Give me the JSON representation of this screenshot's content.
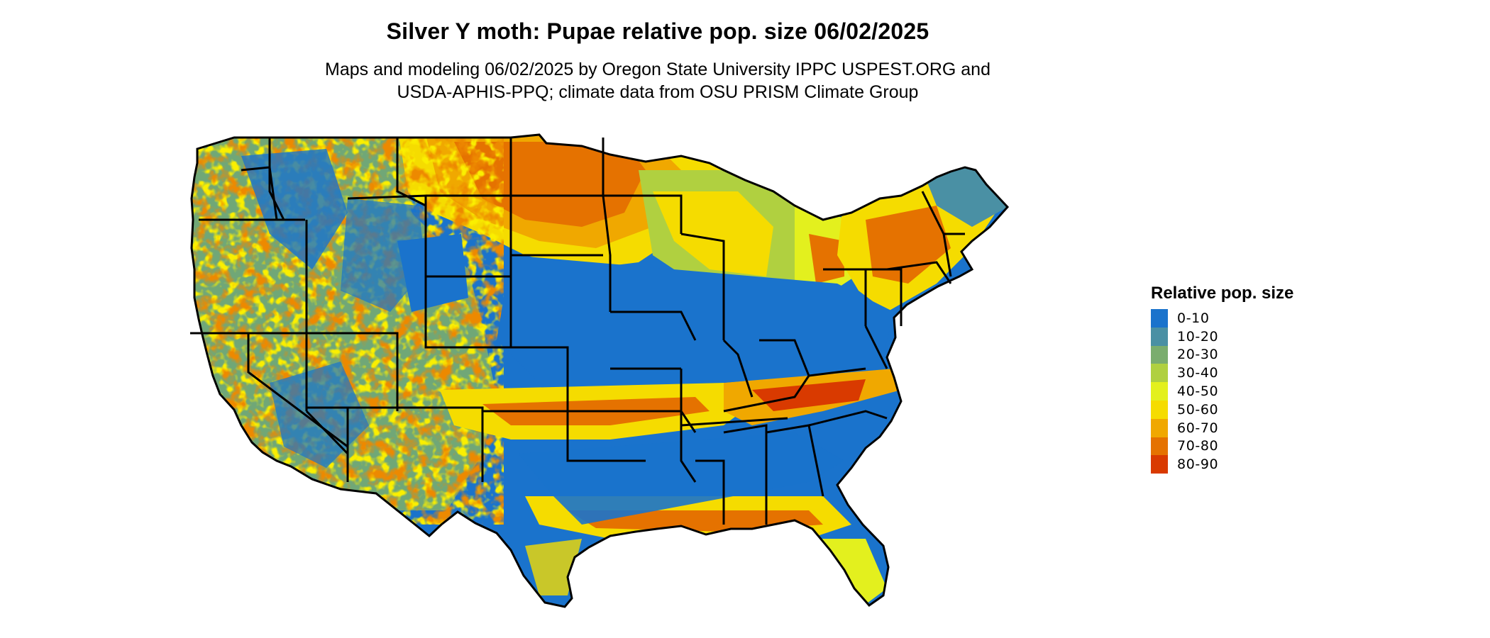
{
  "title": "Silver Y moth: Pupae relative pop. size 06/02/2025",
  "subtitle_line1": "Maps and modeling 06/02/2025 by Oregon State University IPPC USPEST.ORG and",
  "subtitle_line2": "USDA-APHIS-PPQ; climate data from OSU PRISM Climate Group",
  "legend": {
    "title": "Relative pop. size",
    "items": [
      {
        "label": "0-10",
        "color": "#1a73cc"
      },
      {
        "label": "10-20",
        "color": "#4a90a4"
      },
      {
        "label": "20-30",
        "color": "#7aad6e"
      },
      {
        "label": "30-40",
        "color": "#b0d040"
      },
      {
        "label": "40-50",
        "color": "#e3f01e"
      },
      {
        "label": "50-60",
        "color": "#f5dc00"
      },
      {
        "label": "60-70",
        "color": "#f0a800"
      },
      {
        "label": "70-80",
        "color": "#e57200"
      },
      {
        "label": "80-90",
        "color": "#d93a00"
      }
    ]
  }
}
